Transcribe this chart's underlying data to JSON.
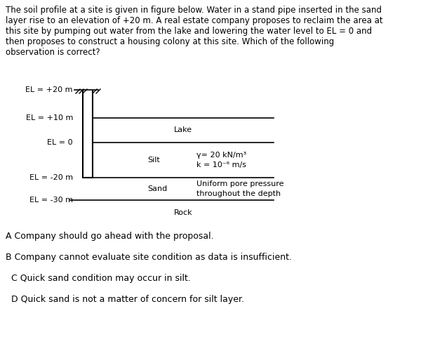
{
  "title_text": "The soil profile at a site is given in figure below. Water in a stand pipe inserted in the sand\nlayer rise to an elevation of +20 m. A real estate company proposes to reclaim the area at\nthis site by pumping out water from the lake and lowering the water level to EL = 0 and\nthen proposes to construct a housing colony at this site. Which of the following\nobservation is correct?",
  "props_line1": "γ= 20 kN/m³",
  "props_line2": "k = 10⁻⁶ m/s",
  "pore_line1": "Uniform pore pressure",
  "pore_line2": "throughout the depth",
  "options": [
    "A Company should go ahead with the proposal.",
    "B Company cannot evaluate site condition as data is insufficient.",
    "  C Quick sand condition may occur in silt.",
    "  D Quick sand is not a matter of concern for silt layer."
  ],
  "bg_color": "#ffffff",
  "text_color": "#000000",
  "line_color": "#000000",
  "title_fontsize": 8.5,
  "diagram_fontsize": 8.0,
  "options_fontsize": 9.0
}
